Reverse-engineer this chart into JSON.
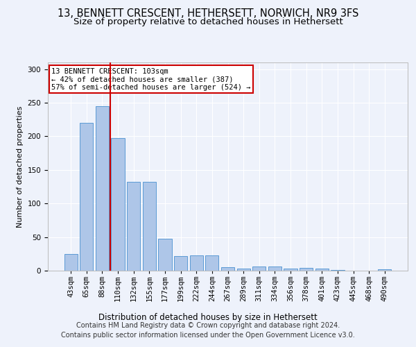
{
  "title": "13, BENNETT CRESCENT, HETHERSETT, NORWICH, NR9 3FS",
  "subtitle": "Size of property relative to detached houses in Hethersett",
  "xlabel": "Distribution of detached houses by size in Hethersett",
  "ylabel": "Number of detached properties",
  "bar_labels": [
    "43sqm",
    "65sqm",
    "88sqm",
    "110sqm",
    "132sqm",
    "155sqm",
    "177sqm",
    "199sqm",
    "222sqm",
    "244sqm",
    "267sqm",
    "289sqm",
    "311sqm",
    "334sqm",
    "356sqm",
    "378sqm",
    "401sqm",
    "423sqm",
    "445sqm",
    "468sqm",
    "490sqm"
  ],
  "bar_values": [
    25,
    220,
    245,
    197,
    132,
    132,
    48,
    22,
    23,
    23,
    5,
    3,
    6,
    6,
    3,
    4,
    3,
    1,
    0,
    0,
    2
  ],
  "bar_color": "#aec6e8",
  "bar_edge_color": "#5b9bd5",
  "property_line_color": "#cc0000",
  "annotation_text": "13 BENNETT CRESCENT: 103sqm\n← 42% of detached houses are smaller (387)\n57% of semi-detached houses are larger (524) →",
  "annotation_box_color": "#ffffff",
  "annotation_box_edge": "#cc0000",
  "footer_text": "Contains HM Land Registry data © Crown copyright and database right 2024.\nContains public sector information licensed under the Open Government Licence v3.0.",
  "ylim": [
    0,
    310
  ],
  "yticks": [
    0,
    50,
    100,
    150,
    200,
    250,
    300
  ],
  "background_color": "#eef2fb",
  "grid_color": "#ffffff",
  "title_fontsize": 10.5,
  "subtitle_fontsize": 9.5,
  "label_fontsize": 8,
  "tick_fontsize": 7.5,
  "footer_fontsize": 7
}
